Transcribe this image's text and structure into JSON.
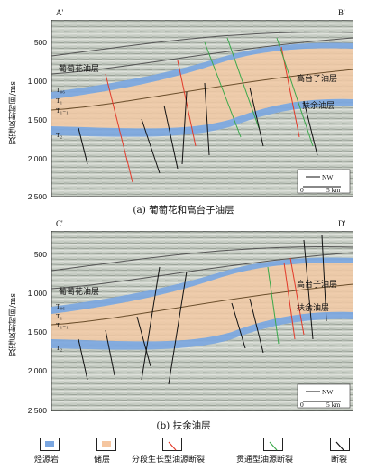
{
  "panels": [
    {
      "corner_left": "A'",
      "corner_right": "B'",
      "yaxis_label": "双程反射时间/ms",
      "ticks": [
        "500",
        "1 000",
        "1 500",
        "2 000",
        "2 500"
      ],
      "layers": [
        "葡萄花油层",
        "高台子油层",
        "扶余油层"
      ],
      "horizons": [
        "T₀₆",
        "T₁",
        "T₁₋₁",
        "T₂"
      ],
      "compass": "NW",
      "scale": [
        "0",
        "5 km"
      ],
      "caption": "(a) 葡萄花和高台子油层"
    },
    {
      "corner_left": "C'",
      "corner_right": "D'",
      "yaxis_label": "双程反射时间/ms",
      "ticks": [
        "500",
        "1 000",
        "1 500",
        "2 000",
        "2 500"
      ],
      "layers": [
        "葡萄花油层",
        "高台子油层",
        "扶余油层"
      ],
      "horizons": [
        "T₀₆",
        "T₁",
        "T₁₋₁",
        "T₂"
      ],
      "compass": "NW",
      "scale": [
        "0",
        "5 km"
      ],
      "caption": "(b) 扶余油层"
    }
  ],
  "legend": [
    {
      "label": "烃源岩",
      "color": "#7aa6e0"
    },
    {
      "label": "储层",
      "color": "#f5c6a0"
    },
    {
      "label": "分段生长型油源断裂",
      "color": "#e23a2a"
    },
    {
      "label": "贯通型油源断裂",
      "color": "#3aa84a"
    },
    {
      "label": "断裂",
      "color": "#111111"
    }
  ]
}
